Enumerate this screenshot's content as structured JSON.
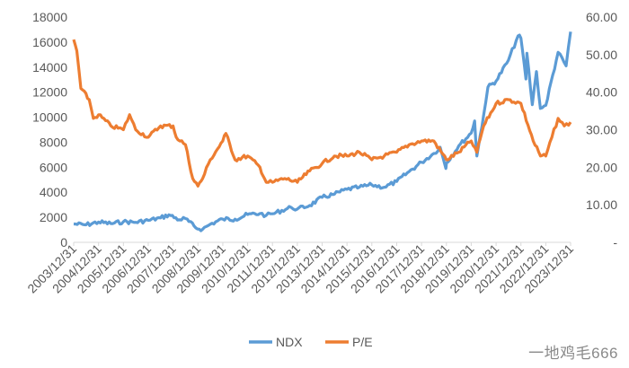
{
  "chart_data": {
    "type": "line",
    "title": "",
    "x": [
      "2003/12/31",
      "2004/12/31",
      "2005/12/31",
      "2006/12/31",
      "2007/12/31",
      "2008/12/31",
      "2009/12/31",
      "2010/12/31",
      "2011/12/31",
      "2012/12/31",
      "2013/12/31",
      "2014/12/31",
      "2015/12/31",
      "2016/12/31",
      "2017/12/31",
      "2018/12/31",
      "2019/12/31",
      "2020/12/31",
      "2021/12/31",
      "2022/12/31",
      "2023/12/31"
    ],
    "series": [
      {
        "name": "NDX",
        "axis": "left",
        "color": "#5b9bd5",
        "points": [
          [
            "2003/12/31",
            1470
          ],
          [
            "2004/06/30",
            1400
          ],
          [
            "2004/12/31",
            1620
          ],
          [
            "2005/06/30",
            1500
          ],
          [
            "2005/12/31",
            1650
          ],
          [
            "2006/06/30",
            1600
          ],
          [
            "2006/12/31",
            1760
          ],
          [
            "2007/06/30",
            1950
          ],
          [
            "2007/10/31",
            2200
          ],
          [
            "2008/03/31",
            1800
          ],
          [
            "2008/06/30",
            1900
          ],
          [
            "2008/11/30",
            1150
          ],
          [
            "2009/03/09",
            1050
          ],
          [
            "2009/06/30",
            1450
          ],
          [
            "2009/12/31",
            1860
          ],
          [
            "2010/06/30",
            1850
          ],
          [
            "2010/12/31",
            2220
          ],
          [
            "2011/06/30",
            2300
          ],
          [
            "2011/09/30",
            2150
          ],
          [
            "2011/12/31",
            2280
          ],
          [
            "2012/09/30",
            2800
          ],
          [
            "2012/12/31",
            2660
          ],
          [
            "2013/06/30",
            2950
          ],
          [
            "2013/12/31",
            3590
          ],
          [
            "2014/06/30",
            3850
          ],
          [
            "2014/12/31",
            4240
          ],
          [
            "2015/06/30",
            4400
          ],
          [
            "2015/12/31",
            4590
          ],
          [
            "2016/06/30",
            4400
          ],
          [
            "2016/12/31",
            4860
          ],
          [
            "2017/06/30",
            5650
          ],
          [
            "2017/12/31",
            6400
          ],
          [
            "2018/06/30",
            7100
          ],
          [
            "2018/09/30",
            7600
          ],
          [
            "2018/12/24",
            5900
          ],
          [
            "2018/12/31",
            6330
          ],
          [
            "2019/06/30",
            7700
          ],
          [
            "2019/12/31",
            8730
          ],
          [
            "2020/02/19",
            9700
          ],
          [
            "2020/03/23",
            6900
          ],
          [
            "2020/06/30",
            10150
          ],
          [
            "2020/09/02",
            12400
          ],
          [
            "2020/12/31",
            12890
          ],
          [
            "2021/06/30",
            14550
          ],
          [
            "2021/11/19",
            16500
          ],
          [
            "2021/12/31",
            16320
          ],
          [
            "2022/03/14",
            13050
          ],
          [
            "2022/03/29",
            15100
          ],
          [
            "2022/06/16",
            11000
          ],
          [
            "2022/08/16",
            13650
          ],
          [
            "2022/10/13",
            10700
          ],
          [
            "2022/12/31",
            10940
          ],
          [
            "2023/06/30",
            15180
          ],
          [
            "2023/10/26",
            14100
          ],
          [
            "2023/12/31",
            16830
          ]
        ]
      },
      {
        "name": "P/E",
        "axis": "right",
        "color": "#ed7d31",
        "points": [
          [
            "2003/12/31",
            54
          ],
          [
            "2004/02/15",
            51
          ],
          [
            "2004/04/15",
            41
          ],
          [
            "2004/08/15",
            38
          ],
          [
            "2004/10/15",
            33
          ],
          [
            "2004/12/31",
            34
          ],
          [
            "2005/06/30",
            31
          ],
          [
            "2005/12/31",
            30
          ],
          [
            "2006/03/31",
            34
          ],
          [
            "2006/06/30",
            30
          ],
          [
            "2006/12/31",
            28
          ],
          [
            "2007/06/30",
            31
          ],
          [
            "2007/12/31",
            31
          ],
          [
            "2008/02/15",
            28
          ],
          [
            "2008/06/30",
            26
          ],
          [
            "2008/10/15",
            17
          ],
          [
            "2008/12/31",
            15
          ],
          [
            "2009/03/09",
            17
          ],
          [
            "2009/06/30",
            22
          ],
          [
            "2009/12/31",
            27
          ],
          [
            "2010/02/15",
            29
          ],
          [
            "2010/06/30",
            22
          ],
          [
            "2010/12/31",
            23
          ],
          [
            "2011/06/30",
            20
          ],
          [
            "2011/10/01",
            16
          ],
          [
            "2011/12/31",
            16
          ],
          [
            "2012/06/30",
            17
          ],
          [
            "2012/12/31",
            16
          ],
          [
            "2013/06/30",
            19
          ],
          [
            "2013/12/31",
            21
          ],
          [
            "2014/06/30",
            23
          ],
          [
            "2014/12/31",
            23
          ],
          [
            "2015/06/30",
            24
          ],
          [
            "2015/12/31",
            22
          ],
          [
            "2016/06/30",
            23
          ],
          [
            "2016/12/31",
            24
          ],
          [
            "2017/06/30",
            26
          ],
          [
            "2017/12/31",
            27
          ],
          [
            "2018/06/30",
            27
          ],
          [
            "2018/12/31",
            22
          ],
          [
            "2019/06/30",
            24
          ],
          [
            "2019/12/31",
            27
          ],
          [
            "2020/03/23",
            24
          ],
          [
            "2020/06/30",
            31
          ],
          [
            "2020/12/31",
            37
          ],
          [
            "2021/06/30",
            38
          ],
          [
            "2021/12/31",
            37
          ],
          [
            "2022/06/30",
            27
          ],
          [
            "2022/10/15",
            23
          ],
          [
            "2022/12/31",
            23
          ],
          [
            "2023/03/31",
            28
          ],
          [
            "2023/06/30",
            33
          ],
          [
            "2023/09/30",
            31
          ],
          [
            "2023/12/31",
            32
          ]
        ]
      }
    ],
    "y_left": {
      "lim": [
        0,
        18000
      ],
      "ticks": [
        "0",
        "2000",
        "4000",
        "6000",
        "8000",
        "10000",
        "12000",
        "14000",
        "16000",
        "18000"
      ]
    },
    "y_right": {
      "lim": [
        0,
        60
      ],
      "ticks": [
        "-",
        "10.00",
        "20.00",
        "30.00",
        "40.00",
        "50.00",
        "60.00"
      ]
    },
    "grid": false,
    "legend_position": "bottom"
  },
  "watermark": "一地鸡毛666"
}
